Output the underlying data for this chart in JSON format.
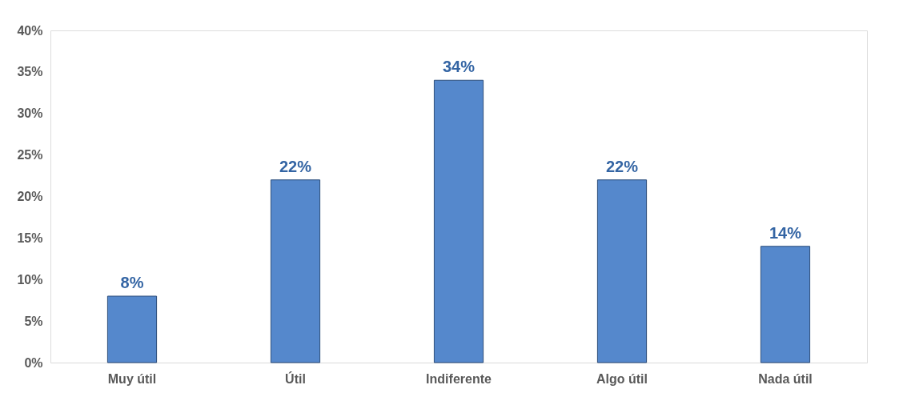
{
  "chart_data": {
    "type": "bar",
    "categories": [
      "Muy útil",
      "Útil",
      "Indiferente",
      "Algo útil",
      "Nada útil"
    ],
    "values": [
      8,
      22,
      34,
      22,
      14
    ],
    "color": "#5588cc",
    "value_labels": [
      "8%",
      "22%",
      "34%",
      "22%",
      "14%"
    ],
    "ylim": [
      0,
      40
    ],
    "yticks": [
      {
        "value": 0,
        "label": "0%"
      },
      {
        "value": 5,
        "label": "5%"
      },
      {
        "value": 10,
        "label": "10%"
      },
      {
        "value": 15,
        "label": "15%"
      },
      {
        "value": 20,
        "label": "20%"
      },
      {
        "value": 25,
        "label": "25%"
      },
      {
        "value": 30,
        "label": "30%"
      },
      {
        "value": 35,
        "label": "35%"
      },
      {
        "value": 40,
        "label": "40%"
      }
    ],
    "grid": false
  }
}
